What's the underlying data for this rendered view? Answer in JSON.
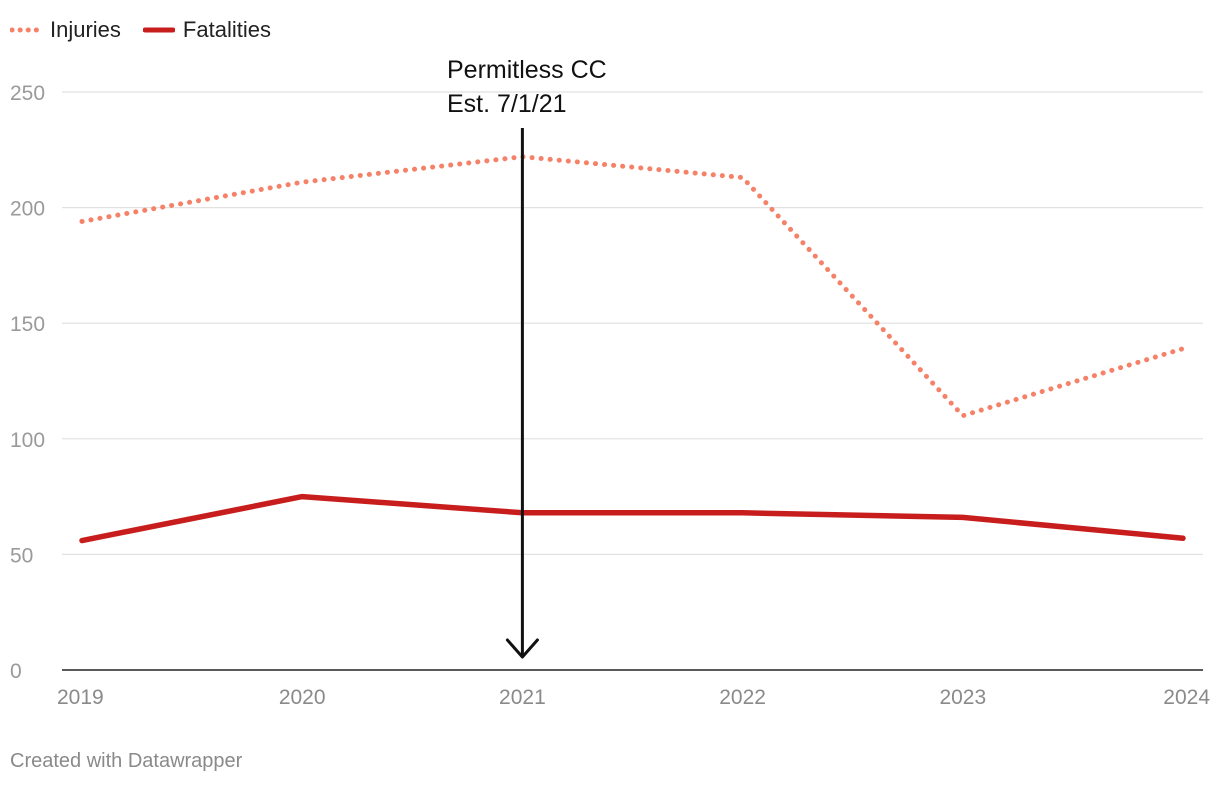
{
  "chart_data": {
    "type": "line",
    "title": "",
    "xlabel": "",
    "ylabel": "",
    "x": [
      "2019",
      "2020",
      "2021",
      "2022",
      "2023",
      "2024"
    ],
    "ylim": [
      0,
      250
    ],
    "yticks": [
      "0",
      "50",
      "100",
      "150",
      "200",
      "250"
    ],
    "series": [
      {
        "name": "Injuries",
        "values": [
          194,
          211,
          222,
          213,
          110,
          139
        ],
        "color": "#f58268",
        "style": "dotted"
      },
      {
        "name": "Fatalities",
        "values": [
          56,
          75,
          68,
          68,
          66,
          57
        ],
        "color": "#c71e1d",
        "style": "solid"
      }
    ],
    "annotation": {
      "line1": "Permitless CC",
      "line2": "Est. 7/1/21",
      "x_value": 2021
    },
    "legend_position": "top-left",
    "grid": true
  },
  "footer": {
    "credit": "Created with Datawrapper"
  }
}
